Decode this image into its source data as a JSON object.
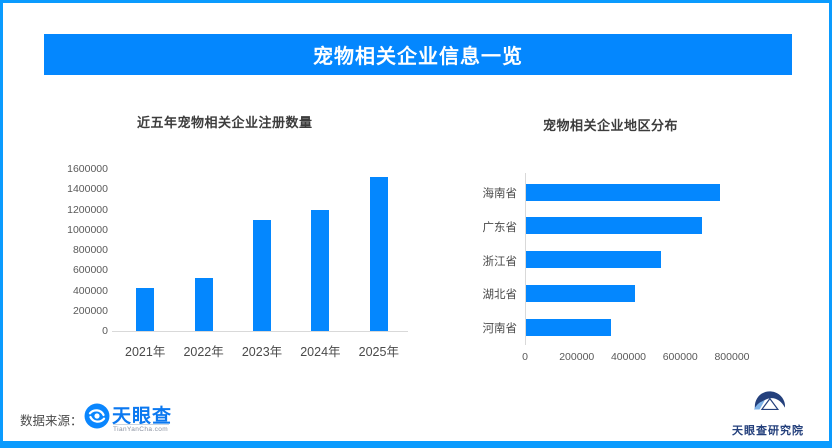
{
  "header": {
    "title": "宠物相关企业信息一览"
  },
  "colors": {
    "frame_blue": "#0a9bfe",
    "accent_blue": "#0487fe",
    "bar_blue": "#0487fe",
    "navy_logo": "#24407c",
    "tyc_blue": "#0b78f0"
  },
  "footer": {
    "source_label": "数据来源：",
    "tyc_logo_text": "天眼查",
    "tyc_logo_subtext": "TianYanCha.com",
    "institute_label": "天眼查研究院"
  },
  "chart_data": [
    {
      "type": "bar",
      "title": "近五年宠物相关企业注册数量",
      "categories": [
        "2021年",
        "2022年",
        "2023年",
        "2024年",
        "2025年"
      ],
      "values": [
        420000,
        520000,
        1100000,
        1200000,
        1520000
      ],
      "xlabel": "",
      "ylabel": "",
      "ylim": [
        0,
        1600000
      ],
      "ytick_step": 200000,
      "grid": false,
      "legend": "none",
      "bar_color": "#0487fe"
    },
    {
      "type": "bar-horizontal",
      "title": "宠物相关企业地区分布",
      "categories": [
        "海南省",
        "广东省",
        "浙江省",
        "湖北省",
        "河南省"
      ],
      "values": [
        750000,
        680000,
        520000,
        420000,
        330000
      ],
      "xlabel": "",
      "ylabel": "",
      "xlim": [
        0,
        800000
      ],
      "xtick_step": 200000,
      "grid": false,
      "legend": "none",
      "bar_color": "#0487fe"
    }
  ]
}
